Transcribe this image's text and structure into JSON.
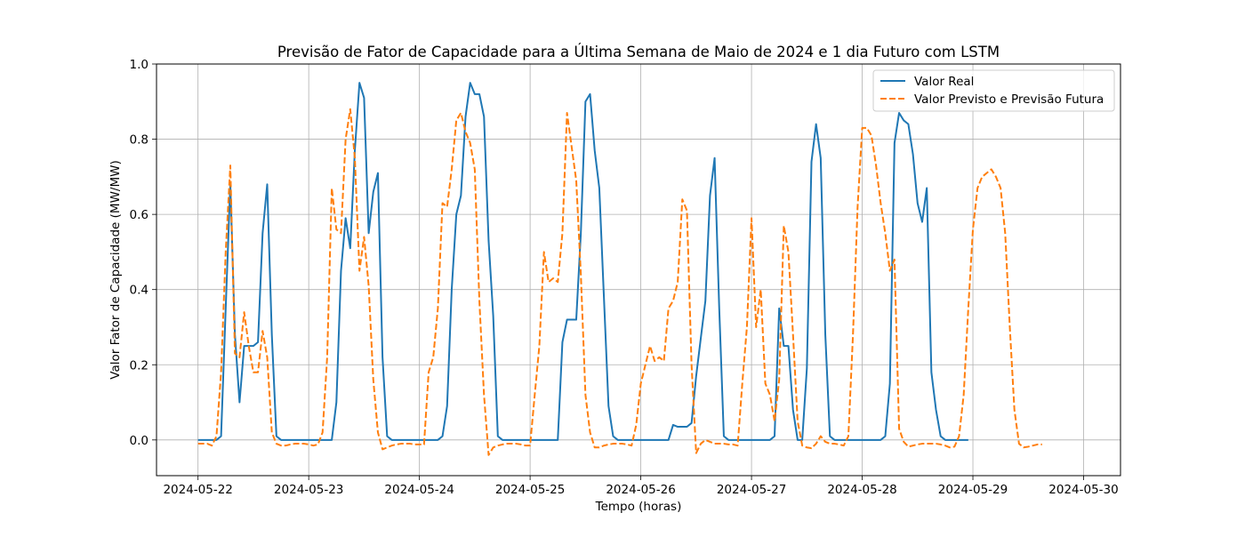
{
  "chart_data": {
    "type": "line",
    "title": "Previsão de Fator de Capacidade para a Última Semana de Maio de 2024 e 1 dia Futuro com LSTM",
    "xlabel": "Tempo (horas)",
    "ylabel": "Valor Fator de Capacidade (MW/MW)",
    "xlim": [
      "2024-05-21 15:00",
      "2024-05-30 08:00"
    ],
    "ylim": [
      -0.095,
      1.0
    ],
    "x_ticks": [
      "2024-05-22",
      "2024-05-23",
      "2024-05-24",
      "2024-05-25",
      "2024-05-26",
      "2024-05-27",
      "2024-05-28",
      "2024-05-29",
      "2024-05-30"
    ],
    "y_ticks": [
      "0.0",
      "0.2",
      "0.4",
      "0.6",
      "0.8",
      "1.0"
    ],
    "grid": true,
    "legend_position": "upper right",
    "time_step": "1h",
    "series": [
      {
        "name": "Valor Real",
        "color": "#1f77b4",
        "style": "solid",
        "start": "2024-05-22 00:00",
        "values": [
          0,
          0,
          0,
          0,
          0,
          0.01,
          0.35,
          0.68,
          0.28,
          0.1,
          0.25,
          0.25,
          0.25,
          0.26,
          0.55,
          0.68,
          0.28,
          0.01,
          0,
          0,
          0,
          0,
          0,
          0,
          0,
          0,
          0,
          0,
          0,
          0,
          0.1,
          0.45,
          0.59,
          0.51,
          0.77,
          0.95,
          0.91,
          0.55,
          0.66,
          0.71,
          0.22,
          0.01,
          0,
          0,
          0,
          0,
          0,
          0,
          0,
          0,
          0,
          0,
          0,
          0.01,
          0.09,
          0.4,
          0.6,
          0.65,
          0.86,
          0.95,
          0.92,
          0.92,
          0.86,
          0.53,
          0.33,
          0.01,
          0,
          0,
          0,
          0,
          0,
          0,
          0,
          0,
          0,
          0,
          0,
          0,
          0,
          0.26,
          0.32,
          0.32,
          0.32,
          0.55,
          0.9,
          0.92,
          0.77,
          0.67,
          0.38,
          0.09,
          0.01,
          0,
          0,
          0,
          0,
          0,
          0,
          0,
          0,
          0,
          0,
          0,
          0,
          0.04,
          0.035,
          0.035,
          0.035,
          0.045,
          0.17,
          0.27,
          0.37,
          0.65,
          0.75,
          0.35,
          0.01,
          0,
          0,
          0,
          0,
          0,
          0,
          0,
          0,
          0,
          0,
          0.01,
          0.35,
          0.25,
          0.25,
          0.08,
          0,
          0,
          0.19,
          0.74,
          0.84,
          0.75,
          0.28,
          0.01,
          0,
          0,
          0,
          0,
          0,
          0,
          0,
          0,
          0,
          0,
          0,
          0.01,
          0.15,
          0.79,
          0.87,
          0.85,
          0.84,
          0.76,
          0.63,
          0.58,
          0.67,
          0.18,
          0.08,
          0.01,
          0,
          0,
          0,
          0,
          0,
          0
        ]
      },
      {
        "name": "Valor Previsto e Previsão Futura",
        "color": "#ff7f0e",
        "style": "dashed",
        "start": "2024-05-22 00:00",
        "values": [
          -0.01,
          -0.01,
          -0.01,
          -0.015,
          0.01,
          0.18,
          0.5,
          0.73,
          0.23,
          0.22,
          0.34,
          0.25,
          0.18,
          0.18,
          0.29,
          0.22,
          0.02,
          -0.01,
          -0.015,
          -0.015,
          -0.012,
          -0.01,
          -0.01,
          -0.01,
          -0.012,
          -0.015,
          -0.012,
          0.02,
          0.22,
          0.67,
          0.56,
          0.55,
          0.8,
          0.88,
          0.75,
          0.45,
          0.54,
          0.41,
          0.16,
          0.02,
          -0.025,
          -0.02,
          -0.015,
          -0.012,
          -0.01,
          -0.01,
          -0.01,
          -0.012,
          -0.012,
          -0.012,
          0.18,
          0.22,
          0.35,
          0.63,
          0.62,
          0.72,
          0.85,
          0.87,
          0.82,
          0.79,
          0.72,
          0.37,
          0.12,
          -0.04,
          -0.02,
          -0.015,
          -0.012,
          -0.01,
          -0.01,
          -0.01,
          -0.012,
          -0.015,
          -0.015,
          0.12,
          0.25,
          0.5,
          0.42,
          0.43,
          0.42,
          0.55,
          0.87,
          0.78,
          0.69,
          0.44,
          0.12,
          0.02,
          -0.02,
          -0.02,
          -0.015,
          -0.012,
          -0.01,
          -0.01,
          -0.01,
          -0.012,
          -0.015,
          0.04,
          0.15,
          0.2,
          0.25,
          0.21,
          0.22,
          0.21,
          0.35,
          0.37,
          0.42,
          0.64,
          0.61,
          0.2,
          -0.035,
          -0.01,
          0,
          -0.005,
          -0.01,
          -0.01,
          -0.01,
          -0.012,
          -0.012,
          -0.015,
          0.15,
          0.3,
          0.59,
          0.3,
          0.4,
          0.15,
          0.12,
          0.05,
          0.16,
          0.57,
          0.5,
          0.28,
          0.05,
          -0.015,
          -0.02,
          -0.022,
          -0.01,
          0.01,
          -0.005,
          -0.01,
          -0.01,
          -0.012,
          -0.015,
          0.01,
          0.28,
          0.62,
          0.83,
          0.83,
          0.81,
          0.73,
          0.63,
          0.55,
          0.45,
          0.48,
          0.03,
          -0.005,
          -0.018,
          -0.015,
          -0.012,
          -0.01,
          -0.01,
          -0.01,
          -0.01,
          -0.012,
          -0.015,
          -0.02,
          -0.018,
          0.01,
          0.12,
          0.35,
          0.56,
          0.67,
          0.7,
          0.71,
          0.72,
          0.7,
          0.67,
          0.55,
          0.3,
          0.08,
          -0.01,
          -0.02,
          -0.018,
          -0.015,
          -0.012,
          -0.012
        ]
      }
    ]
  }
}
